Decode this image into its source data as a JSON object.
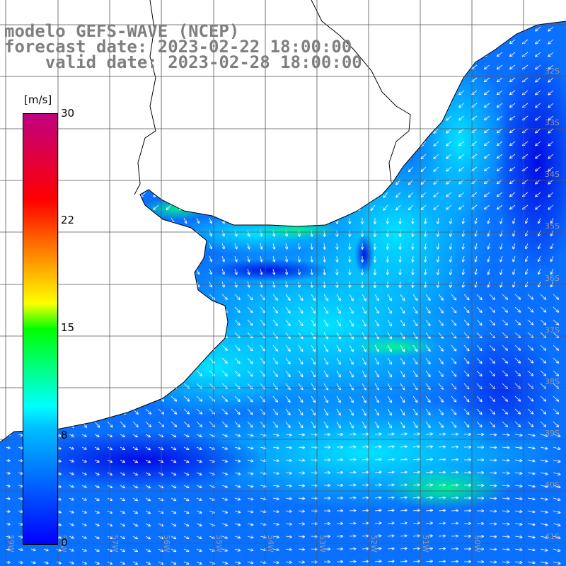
{
  "header": {
    "line1": "modelo GEFS-WAVE (NCEP)",
    "line2": "forecast date: 2023-02-22 18:00:00",
    "line3": "valid date: 2023-02-28 18:00:00"
  },
  "colorbar": {
    "unit": "[m/s]",
    "ticks": [
      "30",
      "22",
      "15",
      "8",
      "0"
    ],
    "colors": [
      "#0000ff",
      "#00bfff",
      "#00ffff",
      "#00ff00",
      "#ffff00",
      "#ff8000",
      "#ff0000",
      "#c00080"
    ]
  },
  "grid": {
    "lat_labels": [
      "32S",
      "33S",
      "34S",
      "35S",
      "36S",
      "37S",
      "38S",
      "39S",
      "40S",
      "41S"
    ],
    "lon_labels": [
      "59W",
      "58W",
      "57W",
      "56W",
      "55W",
      "54W",
      "53W",
      "52W",
      "51W",
      "50W"
    ]
  },
  "map": {
    "region": "Rio de la Plata / Uruguay coast",
    "ocean_color": "#0a7cff",
    "land_color": "#ffffff"
  }
}
